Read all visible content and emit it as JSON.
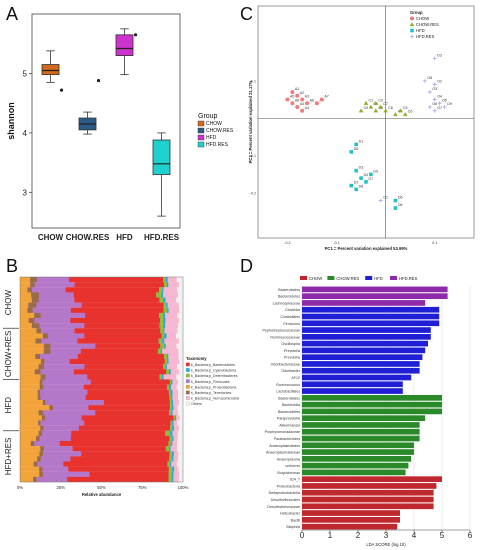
{
  "panels": {
    "a": {
      "letter": "A"
    },
    "b": {
      "letter": "B"
    },
    "c": {
      "letter": "C"
    },
    "d": {
      "letter": "D"
    }
  },
  "chart_data": [
    {
      "panel": "A",
      "type": "boxplot",
      "ylabel": "shannon",
      "ylim": [
        2.4,
        6.0
      ],
      "yticks": [
        3,
        4,
        5
      ],
      "categories": [
        "CHOW",
        "CHOW.RES",
        "HFD",
        "HFD.RES"
      ],
      "colors": [
        "#d2691e",
        "#2e5a87",
        "#cc33cc",
        "#1fd1cc"
      ],
      "boxes": [
        {
          "min": 4.85,
          "q1": 4.98,
          "median": 5.05,
          "q3": 5.15,
          "max": 5.38,
          "outliers": [
            4.72
          ]
        },
        {
          "min": 3.98,
          "q1": 4.05,
          "median": 4.15,
          "q3": 4.25,
          "max": 4.35,
          "outliers": [
            4.88
          ]
        },
        {
          "min": 4.98,
          "q1": 5.3,
          "median": 5.42,
          "q3": 5.65,
          "max": 5.75,
          "outliers": [
            5.65
          ]
        },
        {
          "min": 2.6,
          "q1": 3.3,
          "median": 3.48,
          "q3": 3.88,
          "max": 4.0,
          "outliers": []
        }
      ],
      "legend_title": "Group",
      "legend": [
        "CHOW",
        "CHOW.RES",
        "HFD",
        "HFD.RES"
      ],
      "legend_position": "right"
    },
    {
      "panel": "B",
      "type": "stacked-bar",
      "orientation": "horizontal",
      "xlabel": "Relative abundance",
      "xticks": [
        "0%",
        "25%",
        "50%",
        "75%",
        "100%"
      ],
      "group_labels": [
        "CHOW",
        "CHOW+RES",
        "HFD",
        "HFD+RES"
      ],
      "samples_per_group": 10,
      "legend_title": "Taxonomy",
      "series": [
        {
          "name": "k_Bacteria;p_Bacteroidetes",
          "color": "#e8322d",
          "mean": 0.55
        },
        {
          "name": "k_Bacteria;p_Cyanobacteria",
          "color": "#2aa9cf",
          "mean": 0.01
        },
        {
          "name": "k_Bacteria;p_Deferribacteres",
          "color": "#8dbf3f",
          "mean": 0.02
        },
        {
          "name": "k_Bacteria;p_Firmicutes",
          "color": "#b577c9",
          "mean": 0.27
        },
        {
          "name": "k_Bacteria;p_Proteobacteria",
          "color": "#f2a33a",
          "mean": 0.08
        },
        {
          "name": "k_Bacteria;p_Tenericutes",
          "color": "#9a6b4a",
          "mean": 0.03
        },
        {
          "name": "k_Bacteria;p_Verrucomicrobia",
          "color": "#f5b7d1",
          "mean": 0.03
        },
        {
          "name": "Others",
          "color": "#f1f1f1",
          "mean": 0.01
        }
      ]
    },
    {
      "panel": "C",
      "type": "scatter",
      "xlabel": "PC1 = Percent variation explained 53.99%",
      "ylabel": "PC2 = Percent variation explained 21.17%",
      "xlim": [
        -0.26,
        0.18
      ],
      "ylim": [
        -0.32,
        0.3
      ],
      "legend_title": "Group",
      "series": [
        {
          "name": "CHOW",
          "color": "#f27a7a",
          "shape": "circle",
          "points": [
            [
              -0.19,
              0.07
            ],
            [
              -0.18,
              0.06
            ],
            [
              -0.17,
              0.05
            ],
            [
              -0.2,
              0.05
            ],
            [
              -0.18,
              0.03
            ],
            [
              -0.16,
              0.04
            ],
            [
              -0.19,
              0.04
            ],
            [
              -0.17,
              0.02
            ],
            [
              -0.14,
              0.04
            ],
            [
              -0.13,
              0.05
            ]
          ],
          "labels": [
            "A1",
            "A2",
            "A3",
            "A5",
            "A4",
            "A6",
            "A8",
            "A4",
            "A9",
            "A7"
          ]
        },
        {
          "name": "CHOW.RES",
          "color": "#8fae2a",
          "shape": "triangle",
          "points": [
            [
              -0.04,
              0.04
            ],
            [
              -0.03,
              0.03
            ],
            [
              -0.02,
              0.02
            ],
            [
              -0.01,
              0.03
            ],
            [
              0.0,
              0.02
            ],
            [
              0.02,
              0.01
            ],
            [
              0.03,
              0.02
            ],
            [
              0.04,
              0.01
            ],
            [
              -0.05,
              0.02
            ],
            [
              -0.02,
              0.04
            ]
          ],
          "labels": [
            "C1",
            "C2",
            "C3",
            "C7",
            "C8",
            "C4",
            "C5",
            "C6",
            "C9",
            "C3"
          ]
        },
        {
          "name": "HFD",
          "color": "#22c2c6",
          "shape": "square",
          "points": [
            [
              -0.06,
              -0.07
            ],
            [
              -0.07,
              -0.09
            ],
            [
              -0.06,
              -0.14
            ],
            [
              -0.05,
              -0.16
            ],
            [
              -0.04,
              -0.17
            ],
            [
              -0.07,
              -0.18
            ],
            [
              -0.06,
              -0.19
            ],
            [
              -0.03,
              -0.15
            ],
            [
              0.02,
              -0.22
            ],
            [
              0.02,
              -0.24
            ]
          ],
          "labels": [
            "D1",
            "D6",
            "D3",
            "D4",
            "D7",
            "D2",
            "D8",
            "D9",
            "D5",
            "D6"
          ]
        },
        {
          "name": "HFD.RES",
          "color": "#a7a7e8",
          "shape": "cross",
          "points": [
            [
              0.1,
              0.16
            ],
            [
              0.08,
              0.1
            ],
            [
              0.1,
              0.09
            ],
            [
              0.09,
              0.07
            ],
            [
              0.1,
              0.05
            ],
            [
              0.11,
              0.04
            ],
            [
              0.09,
              0.03
            ],
            [
              0.1,
              0.02
            ],
            [
              -0.01,
              -0.22
            ],
            [
              0.12,
              0.03
            ]
          ],
          "labels": [
            "D3",
            "O8",
            "O2",
            "O3",
            "O4",
            "O5",
            "O6",
            "O7",
            "O1",
            "O9"
          ]
        }
      ]
    },
    {
      "panel": "D",
      "type": "bar",
      "orientation": "horizontal",
      "xlabel": "LDA SCORE (log 10)",
      "xlim": [
        0,
        6
      ],
      "xticks": [
        0,
        1,
        2,
        3,
        4,
        5,
        6
      ],
      "legend": [
        {
          "name": "CHOW",
          "color": "#c0282f"
        },
        {
          "name": "CHOW.RES",
          "color": "#2a8a2a"
        },
        {
          "name": "HFD",
          "color": "#1f1fd6"
        },
        {
          "name": "HFD.RES",
          "color": "#8f2aaa"
        }
      ],
      "bars": [
        {
          "label": "Bacteroidales",
          "value": 5.2,
          "group": "HFD.RES"
        },
        {
          "label": "Bacteroidetes",
          "value": 5.2,
          "group": "HFD.RES"
        },
        {
          "label": "Lachnospiraceae",
          "value": 4.4,
          "group": "HFD.RES"
        },
        {
          "label": "Clostridia",
          "value": 4.9,
          "group": "HFD"
        },
        {
          "label": "Clostridiales",
          "value": 4.9,
          "group": "HFD"
        },
        {
          "label": "Firmicutes",
          "value": 4.9,
          "group": "HFD"
        },
        {
          "label": "Peptostreptococcaceae",
          "value": 4.6,
          "group": "HFD"
        },
        {
          "label": "Ruminococcaceae",
          "value": 4.6,
          "group": "HFD"
        },
        {
          "label": "Oscillospira",
          "value": 4.5,
          "group": "HFD"
        },
        {
          "label": "Prevotella",
          "value": 4.4,
          "group": "HFD"
        },
        {
          "label": "Prevotella",
          "value": 4.3,
          "group": "HFD"
        },
        {
          "label": "Odoribacteriaceae",
          "value": 4.2,
          "group": "HFD"
        },
        {
          "label": "Odoribacter",
          "value": 4.2,
          "group": "HFD"
        },
        {
          "label": "AF12",
          "value": 3.9,
          "group": "HFD"
        },
        {
          "label": "Ruminococcus",
          "value": 3.6,
          "group": "HFD"
        },
        {
          "label": "Lactobacillales",
          "value": 3.6,
          "group": "HFD"
        },
        {
          "label": "Bacteroidales",
          "value": 5.0,
          "group": "CHOW.RES"
        },
        {
          "label": "Bacteroidia",
          "value": 5.0,
          "group": "CHOW.RES"
        },
        {
          "label": "Bacteroidetes",
          "value": 5.0,
          "group": "CHOW.RES"
        },
        {
          "label": "Paraprevotella",
          "value": 4.4,
          "group": "CHOW.RES"
        },
        {
          "label": "Akkermansia",
          "value": 4.2,
          "group": "CHOW.RES"
        },
        {
          "label": "Porphyromonadaceae",
          "value": 4.2,
          "group": "CHOW.RES"
        },
        {
          "label": "Parabacteroides",
          "value": 4.2,
          "group": "CHOW.RES"
        },
        {
          "label": "Anaeroplasmatales",
          "value": 4.0,
          "group": "CHOW.RES"
        },
        {
          "label": "Anaeroplasmataceae",
          "value": 4.0,
          "group": "CHOW.RES"
        },
        {
          "label": "Anaeroplasma",
          "value": 3.9,
          "group": "CHOW.RES"
        },
        {
          "label": "uniformis",
          "value": 3.8,
          "group": "CHOW.RES"
        },
        {
          "label": "Butyricimonas",
          "value": 3.7,
          "group": "CHOW.RES"
        },
        {
          "label": "S24_7",
          "value": 5.0,
          "group": "CHOW"
        },
        {
          "label": "Proteobacteria",
          "value": 4.8,
          "group": "CHOW"
        },
        {
          "label": "Deltaproteobacteria",
          "value": 4.7,
          "group": "CHOW"
        },
        {
          "label": "Desulfovibrionales",
          "value": 4.7,
          "group": "CHOW"
        },
        {
          "label": "Desulfovibrionaceae",
          "value": 4.7,
          "group": "CHOW"
        },
        {
          "label": "Helicobacter",
          "value": 3.5,
          "group": "CHOW"
        },
        {
          "label": "Bacilli",
          "value": 3.5,
          "group": "CHOW"
        },
        {
          "label": "Bilophila",
          "value": 3.4,
          "group": "CHOW"
        }
      ]
    }
  ]
}
